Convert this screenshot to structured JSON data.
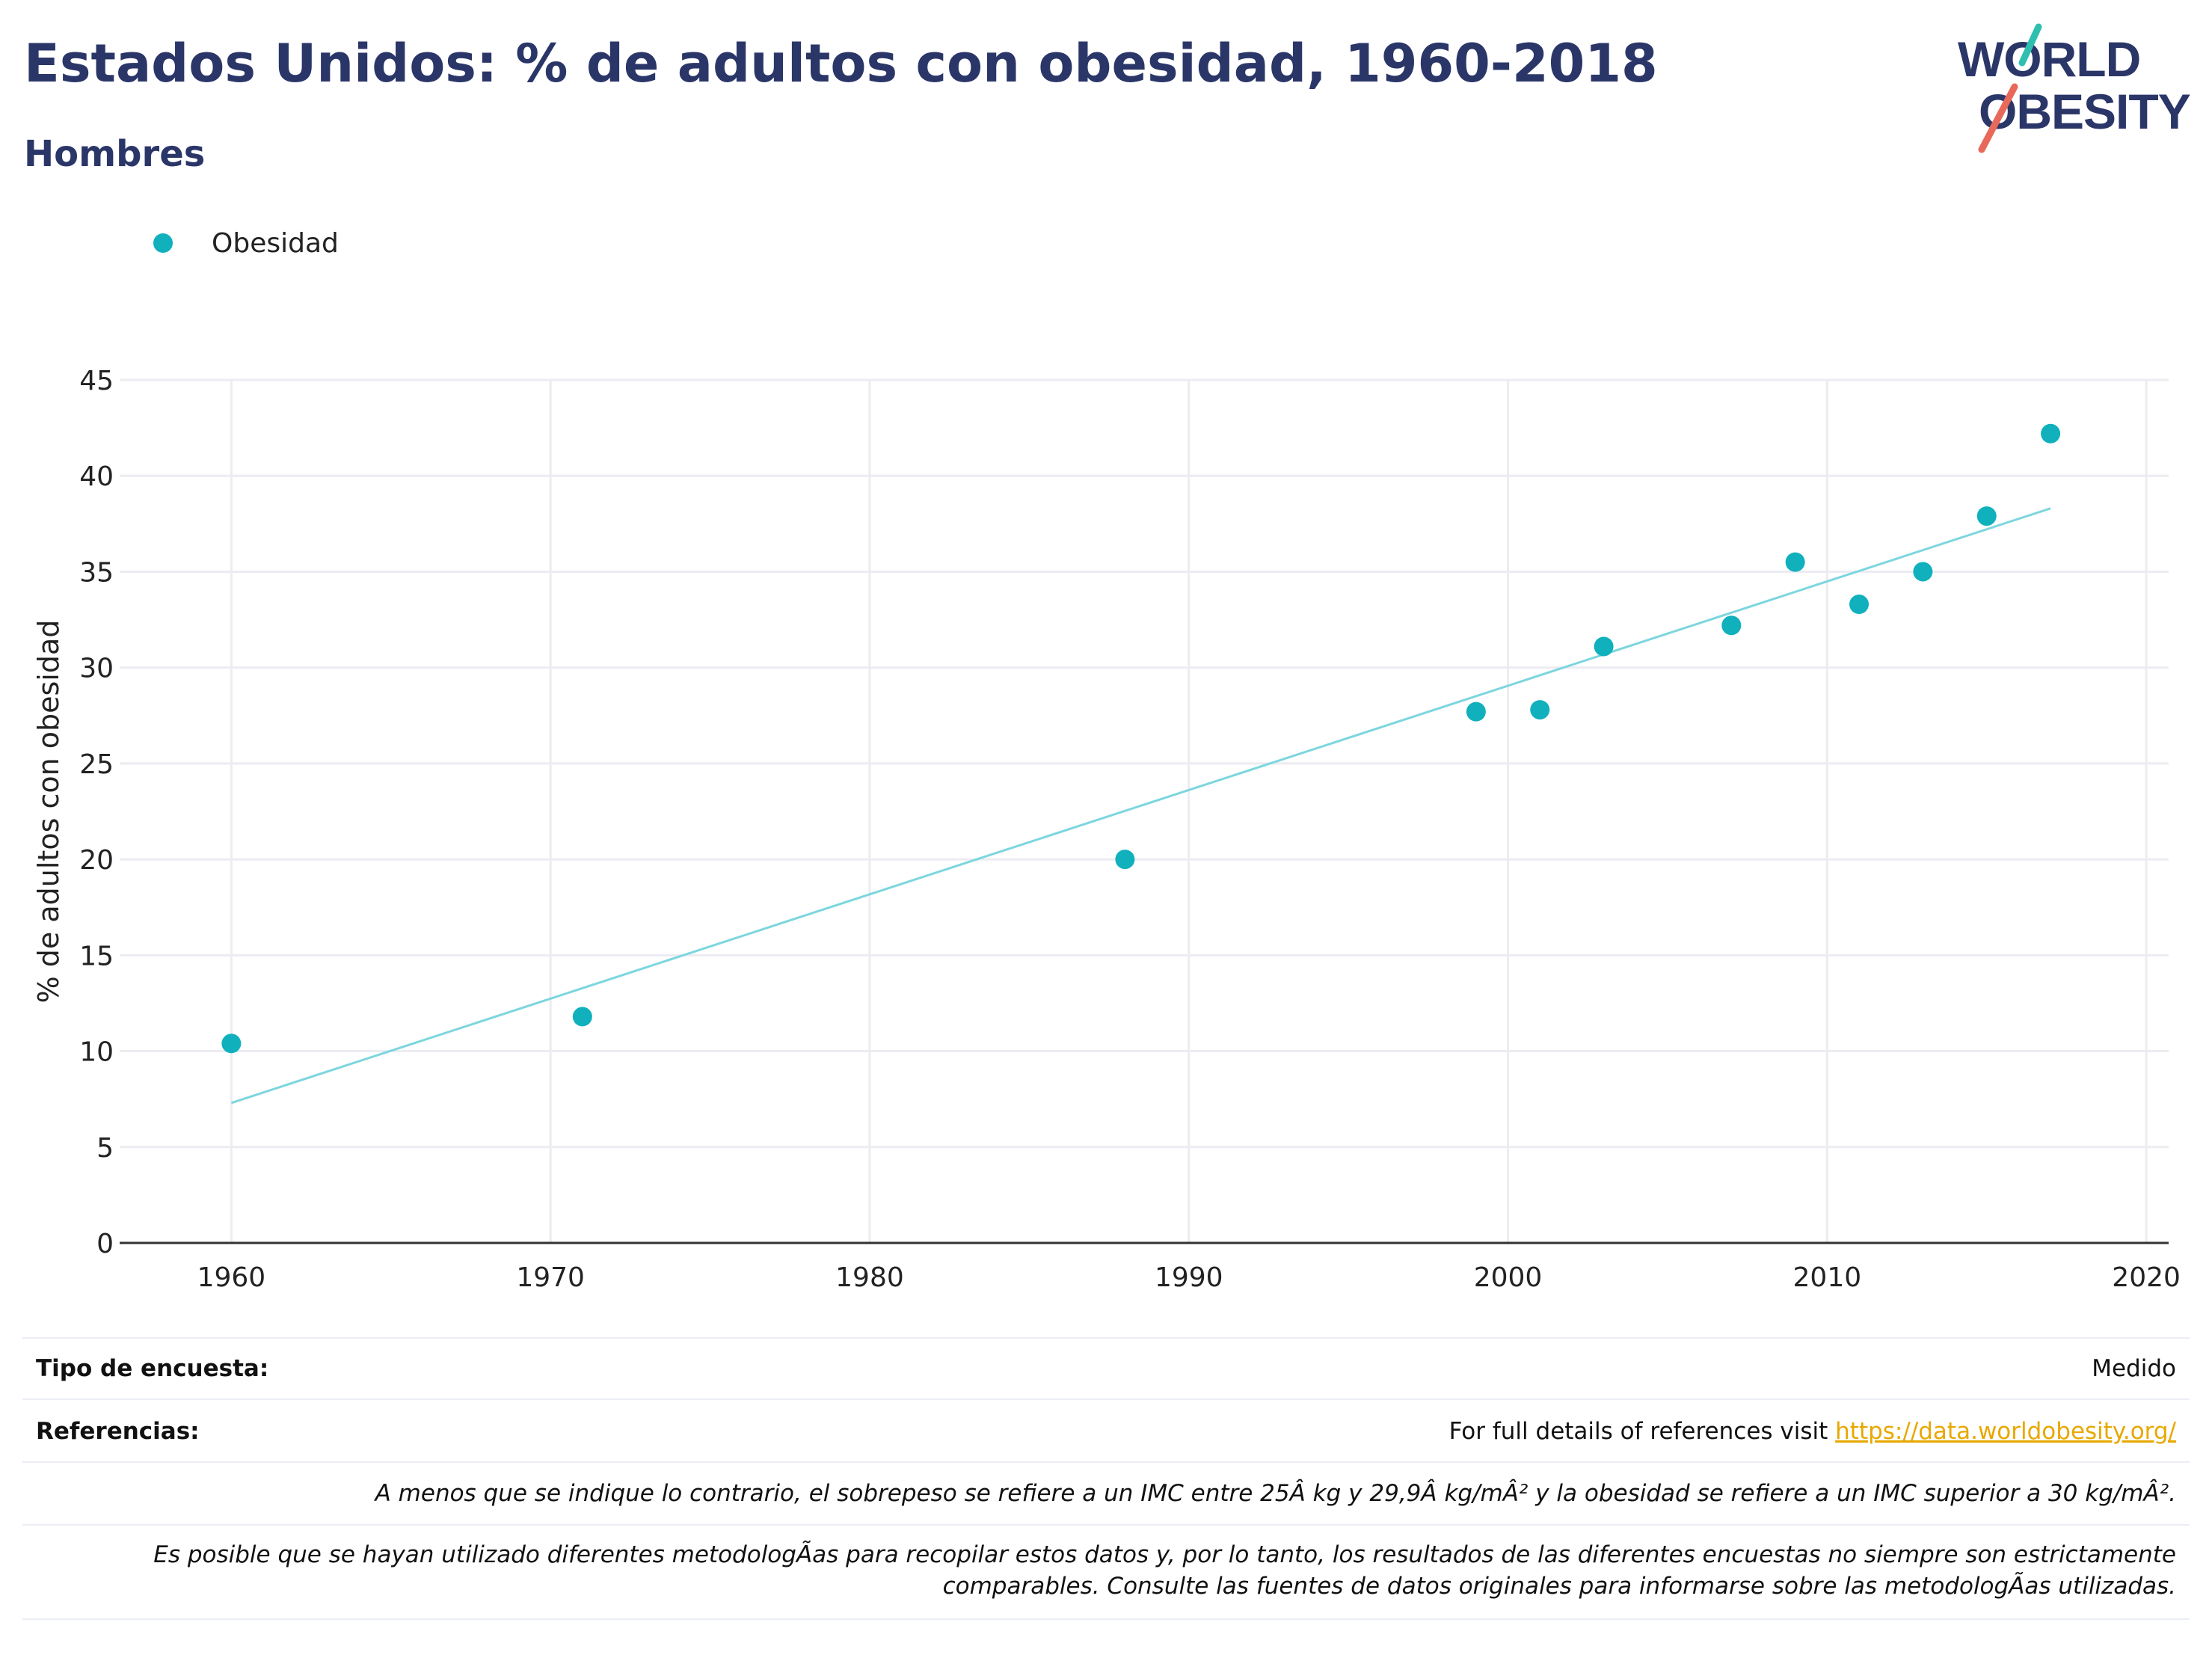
{
  "header": {
    "title": "Estados Unidos: % de adultos con obesidad, 1960-2018",
    "subtitle": "Hombres"
  },
  "logo": {
    "line1": "WORLD",
    "line2": "OBESITY",
    "text_color": "#2b3668",
    "slash_colors": [
      "#2fbfb0",
      "#e8695a"
    ]
  },
  "legend": {
    "label": "Obesidad",
    "color": "#10b0bd"
  },
  "chart_data": {
    "type": "scatter",
    "title": "Estados Unidos: % de adultos con obesidad, 1960-2018",
    "subtitle": "Hombres",
    "xlabel": "",
    "ylabel": "% de adultos con obesidad",
    "xlim": [
      1956.5,
      2020.7
    ],
    "ylim": [
      0,
      45
    ],
    "xticks": [
      1960,
      1970,
      1980,
      1990,
      2000,
      2010,
      2020
    ],
    "yticks": [
      0,
      5,
      10,
      15,
      20,
      25,
      30,
      35,
      40,
      45
    ],
    "grid": true,
    "legend_position": "top-left",
    "series": [
      {
        "name": "Obesidad",
        "color": "#10b0bd",
        "points": [
          {
            "x": 1960,
            "y": 10.4
          },
          {
            "x": 1971,
            "y": 11.8
          },
          {
            "x": 1988,
            "y": 20.0
          },
          {
            "x": 1999,
            "y": 27.7
          },
          {
            "x": 2001,
            "y": 27.8
          },
          {
            "x": 2003,
            "y": 31.1
          },
          {
            "x": 2007,
            "y": 32.2
          },
          {
            "x": 2009,
            "y": 35.5
          },
          {
            "x": 2011,
            "y": 33.3
          },
          {
            "x": 2013,
            "y": 35.0
          },
          {
            "x": 2015,
            "y": 37.9
          },
          {
            "x": 2017,
            "y": 42.2
          }
        ]
      }
    ],
    "trendline": {
      "color": "#7dd6de",
      "start": {
        "x": 1960,
        "y": 7.3
      },
      "end": {
        "x": 2017,
        "y": 38.3
      }
    }
  },
  "footer": {
    "survey_label": "Tipo de encuesta:",
    "survey_value": "Medido",
    "refs_label": "Referencias:",
    "refs_text": "For full details of references visit ",
    "refs_link": "https://data.worldobesity.org/",
    "note1": "A menos que se indique lo contrario, el sobrepeso se refiere a un IMC entre 25Â kg y 29,9Â kg/mÂ² y la obesidad se refiere a un IMC superior a 30 kg/mÂ².",
    "note2_line1": "Es posible que se hayan utilizado diferentes metodologÃas para recopilar estos datos y, por lo tanto, los resultados de las diferentes encuestas no siempre son estrictamente",
    "note2_line2": "comparables. Consulte las fuentes de datos originales para informarse sobre las metodologÃas utilizadas."
  }
}
